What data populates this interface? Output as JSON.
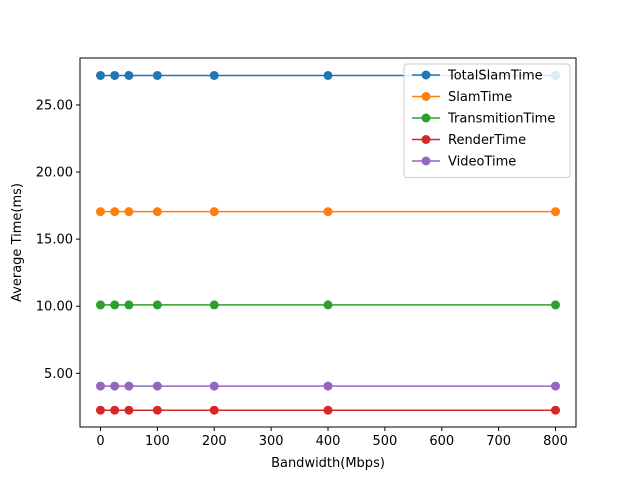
{
  "chart_data": {
    "type": "line",
    "title": "",
    "xlabel": "Bandwidth(Mbps)",
    "ylabel": "Average Time(ms)",
    "xlim": [
      -36,
      836
    ],
    "ylim": [
      1.0,
      28.5
    ],
    "xticks": [
      0,
      100,
      200,
      300,
      400,
      500,
      600,
      700,
      800
    ],
    "xtick_labels": [
      "0",
      "100",
      "200",
      "300",
      "400",
      "500",
      "600",
      "700",
      "800"
    ],
    "yticks": [
      5,
      10,
      15,
      20,
      25
    ],
    "ytick_labels": [
      "5.00",
      "10.00",
      "15.00",
      "20.00",
      "25.00"
    ],
    "grid": false,
    "legend_position": "top-right",
    "x": [
      0,
      25,
      50,
      100,
      200,
      400,
      800
    ],
    "series": [
      {
        "name": "TotalSlamTime",
        "color": "#1f77b4",
        "values": [
          27.2,
          27.2,
          27.2,
          27.2,
          27.2,
          27.2,
          27.2
        ]
      },
      {
        "name": "SlamTime",
        "color": "#ff7f0e",
        "values": [
          17.05,
          17.05,
          17.05,
          17.05,
          17.05,
          17.05,
          17.05
        ]
      },
      {
        "name": "TransmitionTime",
        "color": "#2ca02c",
        "values": [
          10.1,
          10.1,
          10.1,
          10.1,
          10.1,
          10.1,
          10.1
        ]
      },
      {
        "name": "RenderTime",
        "color": "#d62728",
        "values": [
          2.25,
          2.25,
          2.25,
          2.25,
          2.25,
          2.25,
          2.25
        ]
      },
      {
        "name": "VideoTime",
        "color": "#9467bd",
        "values": [
          4.05,
          4.05,
          4.05,
          4.05,
          4.05,
          4.05,
          4.05
        ]
      }
    ]
  }
}
